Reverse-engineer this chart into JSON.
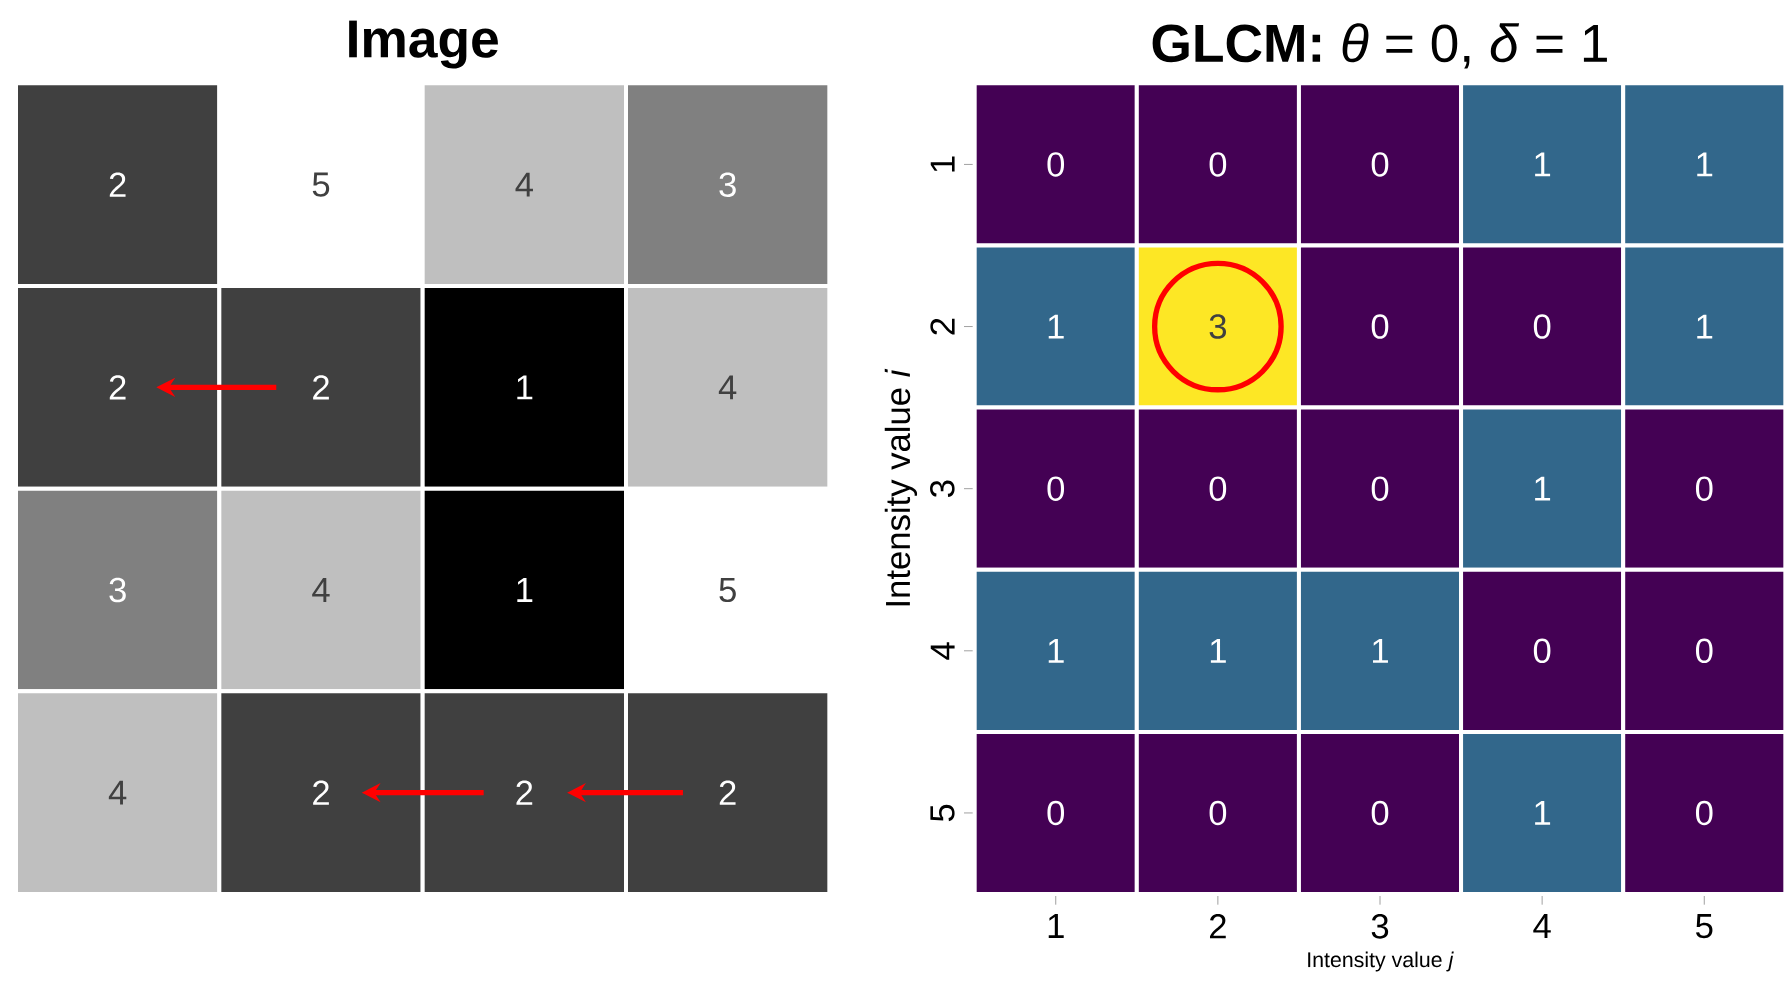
{
  "chart_data": [
    {
      "type": "heatmap",
      "title": "Image",
      "categories": [
        null,
        null,
        null,
        null
      ],
      "y_categories": [
        null,
        null,
        null,
        null
      ],
      "cells": [
        [
          2,
          5,
          4,
          3
        ],
        [
          2,
          2,
          1,
          4
        ],
        [
          3,
          4,
          1,
          5
        ],
        [
          4,
          2,
          2,
          2
        ]
      ],
      "colors": [
        "#000000",
        "#ffffff"
      ],
      "data_labels": true,
      "tick_labels": false
    },
    {
      "type": "heatmap",
      "title": "**GLCM:** *θ* = 0, *δ* = 1",
      "xlabel": "Intensity value *j*",
      "ylabel": "Intensity value *i*",
      "categories": [
        "1",
        "2",
        "3",
        "4",
        "5"
      ],
      "y_categories": [
        "1",
        "2",
        "3",
        "4",
        "5"
      ],
      "cells": [
        [
          0,
          0,
          0,
          1,
          1
        ],
        [
          1,
          3,
          0,
          0,
          1
        ],
        [
          0,
          0,
          0,
          1,
          0
        ],
        [
          1,
          1,
          1,
          0,
          0
        ],
        [
          0,
          0,
          0,
          1,
          0
        ]
      ],
      "colors": [
        "#440154",
        "#3b528b",
        "#21918c",
        "#5ec962",
        "#fde725"
      ],
      "data_labels": true
    }
  ]
}
